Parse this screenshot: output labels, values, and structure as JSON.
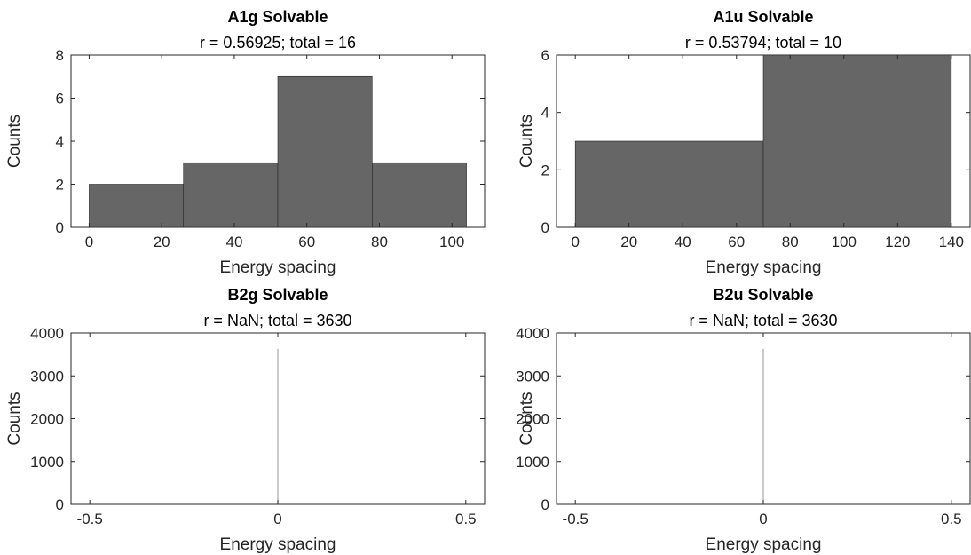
{
  "chart_data": [
    {
      "type": "bar",
      "title": "A1g Solvable",
      "subtitle": "r = 0.56925; total = 16",
      "xlabel": "Energy spacing",
      "ylabel": "Counts",
      "xlim": [
        -5,
        109
      ],
      "ylim": [
        0,
        8
      ],
      "xticks": [
        0,
        20,
        40,
        60,
        80,
        100
      ],
      "xtick_labels": [
        "0",
        "20",
        "40",
        "60",
        "80",
        "100"
      ],
      "yticks": [
        0,
        2,
        4,
        6,
        8
      ],
      "ytick_labels": [
        "0",
        "2",
        "4",
        "6",
        "8"
      ],
      "bin_edges": [
        0,
        26,
        52,
        78,
        104
      ],
      "values": [
        2,
        3,
        7,
        3
      ],
      "bar_color": "#666666"
    },
    {
      "type": "bar",
      "title": "A1u Solvable",
      "subtitle": "r = 0.53794; total = 10",
      "xlabel": "Energy spacing",
      "ylabel": "Counts",
      "xlim": [
        -7,
        147
      ],
      "ylim": [
        0,
        6
      ],
      "xticks": [
        0,
        20,
        40,
        60,
        80,
        100,
        120,
        140
      ],
      "xtick_labels": [
        "0",
        "20",
        "40",
        "60",
        "80",
        "100",
        "120",
        "140"
      ],
      "yticks": [
        0,
        2,
        4,
        6
      ],
      "ytick_labels": [
        "0",
        "2",
        "4",
        "6"
      ],
      "bin_edges": [
        0,
        70,
        140
      ],
      "values": [
        3,
        6
      ],
      "bar_color": "#666666"
    },
    {
      "type": "bar",
      "title": "B2g Solvable",
      "subtitle": "r = NaN; total = 3630",
      "xlabel": "Energy spacing",
      "ylabel": "Counts",
      "xlim": [
        -0.55,
        0.55
      ],
      "ylim": [
        0,
        4000
      ],
      "xticks": [
        -0.5,
        0,
        0.5
      ],
      "xtick_labels": [
        "-0.5",
        "0",
        "0.5"
      ],
      "yticks": [
        0,
        1000,
        2000,
        3000,
        4000
      ],
      "ytick_labels": [
        "0",
        "1000",
        "2000",
        "3000",
        "4000"
      ],
      "bin_edges": [
        0,
        0
      ],
      "values": [
        3630
      ],
      "bar_color": "#666666"
    },
    {
      "type": "bar",
      "title": "B2u Solvable",
      "subtitle": "r = NaN; total = 3630",
      "xlabel": "Energy spacing",
      "ylabel": "Counts",
      "xlim": [
        -0.55,
        0.55
      ],
      "ylim": [
        0,
        4000
      ],
      "xticks": [
        -0.5,
        0,
        0.5
      ],
      "xtick_labels": [
        "-0.5",
        "0",
        "0.5"
      ],
      "yticks": [
        0,
        1000,
        2000,
        3000,
        4000
      ],
      "ytick_labels": [
        "0",
        "1000",
        "2000",
        "3000",
        "4000"
      ],
      "bin_edges": [
        0,
        0
      ],
      "values": [
        3630
      ],
      "bar_color": "#666666"
    }
  ]
}
